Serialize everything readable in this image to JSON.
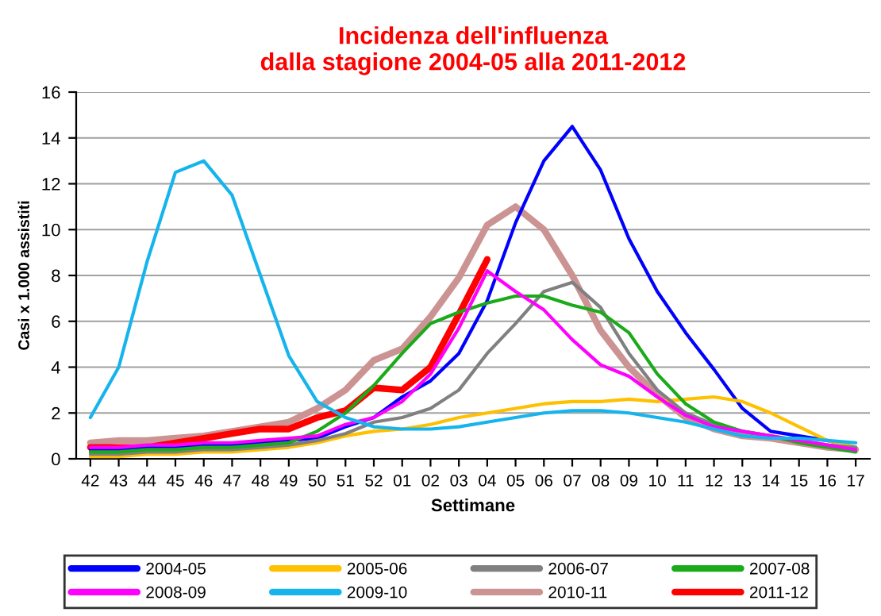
{
  "chart_data": {
    "type": "line",
    "title": "Incidenza dell'influenza\ndalla stagione 2004-05 alla 2011-2012",
    "xlabel": "Settimane",
    "ylabel": "Casi x 1.000 assistiti",
    "categories": [
      "42",
      "43",
      "44",
      "45",
      "46",
      "47",
      "48",
      "49",
      "50",
      "51",
      "52",
      "01",
      "02",
      "03",
      "04",
      "05",
      "06",
      "07",
      "08",
      "09",
      "10",
      "11",
      "12",
      "13",
      "14",
      "15",
      "16",
      "17"
    ],
    "ylim": [
      0,
      16
    ],
    "yticks": [
      0,
      2,
      4,
      6,
      8,
      10,
      12,
      14,
      16
    ],
    "grid": "y",
    "legend": "bottom",
    "marker": "none",
    "line_style": "solid",
    "series": [
      {
        "name": "2004-05",
        "color": "#0000ff",
        "values": [
          0.4,
          0.4,
          0.5,
          0.5,
          0.6,
          0.6,
          0.7,
          0.8,
          0.9,
          1.4,
          1.8,
          2.7,
          3.4,
          4.6,
          6.9,
          10.3,
          13.0,
          14.5,
          12.6,
          9.6,
          7.3,
          5.5,
          3.9,
          2.2,
          1.2,
          1.0,
          0.8,
          0.5
        ]
      },
      {
        "name": "2005-06",
        "color": "#ffc000",
        "values": [
          0.1,
          0.1,
          0.2,
          0.2,
          0.3,
          0.3,
          0.4,
          0.5,
          0.7,
          1.0,
          1.2,
          1.3,
          1.5,
          1.8,
          2.0,
          2.2,
          2.4,
          2.5,
          2.5,
          2.6,
          2.5,
          2.6,
          2.7,
          2.5,
          2.0,
          1.4,
          0.8,
          0.5
        ]
      },
      {
        "name": "2006-07",
        "color": "#808080",
        "values": [
          0.2,
          0.2,
          0.3,
          0.3,
          0.4,
          0.4,
          0.5,
          0.6,
          0.8,
          1.1,
          1.6,
          1.8,
          2.2,
          3.0,
          4.6,
          5.9,
          7.3,
          7.7,
          6.6,
          4.6,
          3.0,
          2.0,
          1.5,
          1.2,
          1.0,
          0.8,
          0.6,
          0.5
        ]
      },
      {
        "name": "2007-08",
        "color": "#1aaa1a",
        "values": [
          0.3,
          0.3,
          0.4,
          0.4,
          0.5,
          0.5,
          0.6,
          0.7,
          1.2,
          2.0,
          3.2,
          4.6,
          5.9,
          6.4,
          6.8,
          7.1,
          7.1,
          6.7,
          6.4,
          5.5,
          3.7,
          2.4,
          1.6,
          1.2,
          1.0,
          0.7,
          0.5,
          0.3
        ]
      },
      {
        "name": "2008-09",
        "color": "#ff00ff",
        "values": [
          0.5,
          0.5,
          0.6,
          0.6,
          0.7,
          0.7,
          0.8,
          0.9,
          1.0,
          1.5,
          1.8,
          2.5,
          3.7,
          5.7,
          8.2,
          7.3,
          6.5,
          5.2,
          4.1,
          3.6,
          2.7,
          1.9,
          1.4,
          1.2,
          1.0,
          0.8,
          0.6,
          0.4
        ]
      },
      {
        "name": "2009-10",
        "color": "#16b4ec",
        "values": [
          1.8,
          4.0,
          8.6,
          12.5,
          13.0,
          11.5,
          8.0,
          4.5,
          2.5,
          1.8,
          1.4,
          1.3,
          1.3,
          1.4,
          1.6,
          1.8,
          2.0,
          2.1,
          2.1,
          2.0,
          1.8,
          1.6,
          1.3,
          1.0,
          0.9,
          0.9,
          0.8,
          0.7
        ]
      },
      {
        "name": "2010-11",
        "color": "#cc9393",
        "values": [
          0.7,
          0.8,
          0.8,
          0.9,
          1.0,
          1.2,
          1.4,
          1.6,
          2.2,
          3.0,
          4.3,
          4.8,
          6.2,
          7.9,
          10.2,
          11.0,
          10.0,
          8.0,
          5.6,
          4.0,
          2.8,
          1.8,
          1.3,
          1.0,
          0.9,
          0.7,
          0.5,
          0.4
        ]
      },
      {
        "name": "2011-12",
        "color": "#ff0000",
        "values": [
          0.5,
          0.5,
          0.5,
          0.7,
          0.9,
          1.1,
          1.3,
          1.3,
          1.8,
          2.1,
          3.1,
          3.0,
          4.0,
          6.3,
          8.7,
          null,
          null,
          null,
          null,
          null,
          null,
          null,
          null,
          null,
          null,
          null,
          null,
          null
        ]
      }
    ]
  }
}
